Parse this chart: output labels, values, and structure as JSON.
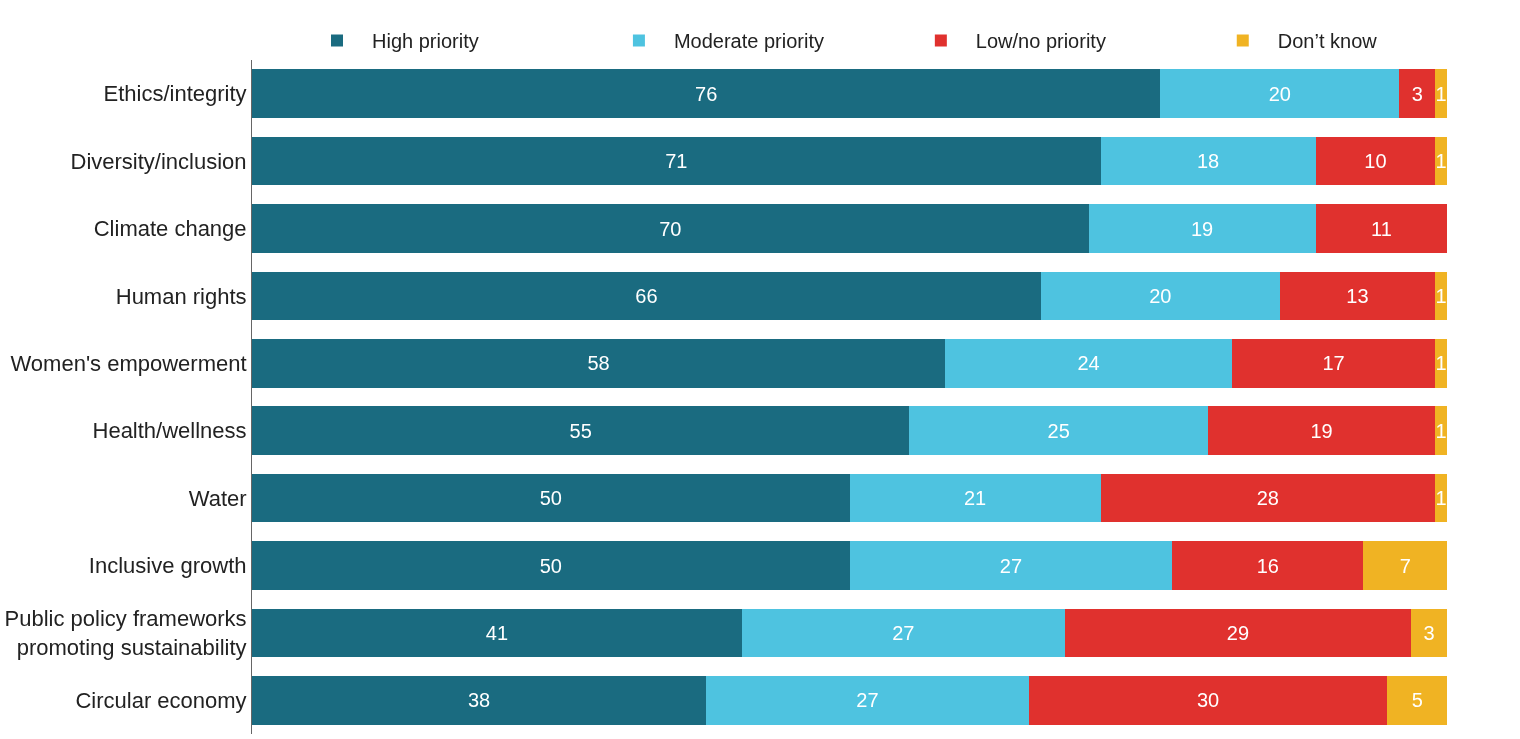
{
  "chart_data": {
    "type": "bar",
    "orientation": "horizontal",
    "stacked": true,
    "data_labels": true,
    "legend": "top",
    "categories": [
      "Ethics/integrity",
      "Diversity/inclusion",
      "Climate change",
      "Human rights",
      "Women's empowerment",
      "Health/wellness",
      "Water",
      "Inclusive growth",
      "Public policy frameworks\npromoting sustainability",
      "Circular economy"
    ],
    "series": [
      {
        "name": "High priority",
        "color": "#1a6b80",
        "values": [
          76,
          71,
          70,
          66,
          58,
          55,
          50,
          50,
          41,
          38
        ]
      },
      {
        "name": "Moderate priority",
        "color": "#4ec3e0",
        "values": [
          20,
          18,
          19,
          20,
          24,
          25,
          21,
          27,
          27,
          27
        ]
      },
      {
        "name": "Low/no priority",
        "color": "#e0312e",
        "values": [
          3,
          10,
          11,
          13,
          17,
          19,
          28,
          16,
          29,
          30
        ]
      },
      {
        "name": "Don’t know",
        "color": "#f0b323",
        "values": [
          1,
          1,
          null,
          1,
          1,
          1,
          1,
          7,
          3,
          5
        ]
      }
    ]
  }
}
